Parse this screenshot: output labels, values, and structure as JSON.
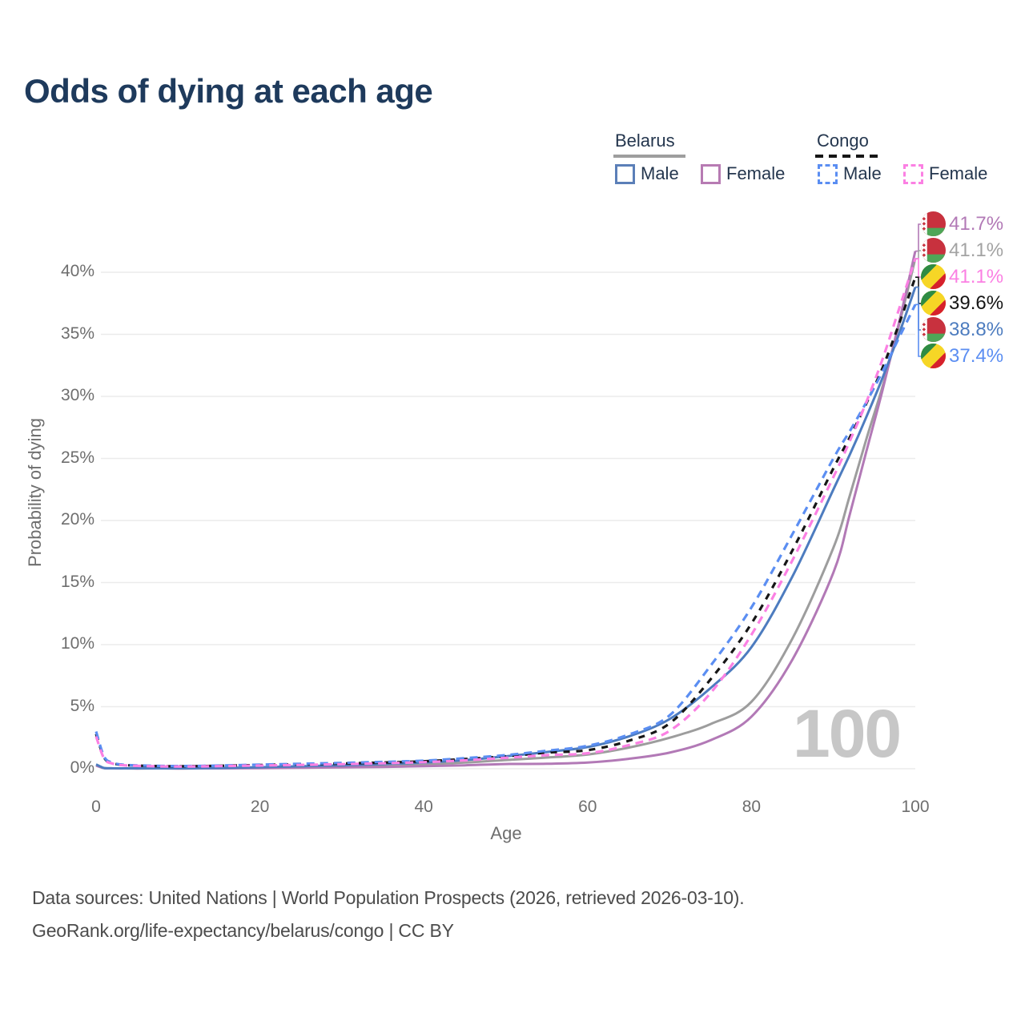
{
  "title": "Odds of dying at each age",
  "legend": {
    "groups": [
      {
        "label": "Belarus",
        "line_style": "solid",
        "underline_color": "#9e9e9e",
        "items": [
          {
            "label": "Male",
            "color": "#4d7cbf"
          },
          {
            "label": "Female",
            "color": "#b279b6"
          }
        ]
      },
      {
        "label": "Congo",
        "line_style": "dashed",
        "underline_color": "#161616",
        "items": [
          {
            "label": "Male",
            "color": "#5b8ef2"
          },
          {
            "label": "Female",
            "color": "#fb80e3"
          }
        ]
      }
    ]
  },
  "chart_data": {
    "type": "line",
    "title": "Odds of dying at each age",
    "xlabel": "Age",
    "ylabel": "Probability of dying",
    "xlim": [
      0,
      100
    ],
    "ylim": [
      0,
      45
    ],
    "xticks": [
      0,
      20,
      40,
      60,
      80,
      100
    ],
    "yticks": [
      0,
      5,
      10,
      15,
      20,
      25,
      30,
      35,
      40
    ],
    "ytick_suffix": "%",
    "grid": "horizontal",
    "watermark": "100",
    "ages": [
      0,
      1,
      2,
      3,
      5,
      10,
      15,
      20,
      25,
      30,
      35,
      40,
      45,
      50,
      55,
      60,
      65,
      70,
      75,
      80,
      85,
      90,
      92,
      94,
      96,
      98,
      100
    ],
    "series": [
      {
        "id": "belarus-both",
        "name": "Belarus Both sexes",
        "country": "Belarus",
        "sex": "Both",
        "color": "#9d9d9d",
        "dash": null,
        "width": 3,
        "values": [
          0.3,
          0.05,
          0.035,
          0.03,
          0.025,
          0.025,
          0.045,
          0.09,
          0.14,
          0.2,
          0.27,
          0.36,
          0.5,
          0.7,
          0.9,
          1.15,
          1.7,
          2.5,
          3.6,
          5.4,
          10.5,
          17.8,
          22.0,
          26.5,
          30.8,
          35.7,
          41.1
        ]
      },
      {
        "id": "belarus-female",
        "name": "Belarus Female",
        "country": "Belarus",
        "sex": "Female",
        "color": "#b279b6",
        "dash": null,
        "width": 3,
        "values": [
          0.25,
          0.045,
          0.03,
          0.025,
          0.02,
          0.02,
          0.03,
          0.05,
          0.08,
          0.11,
          0.15,
          0.21,
          0.28,
          0.38,
          0.4,
          0.5,
          0.8,
          1.3,
          2.3,
          4.2,
          8.8,
          15.8,
          20.5,
          25.5,
          30.5,
          35.9,
          41.7
        ]
      },
      {
        "id": "belarus-male",
        "name": "Belarus Male",
        "country": "Belarus",
        "sex": "Male",
        "color": "#4d7cbf",
        "dash": null,
        "width": 3,
        "values": [
          0.35,
          0.06,
          0.04,
          0.035,
          0.03,
          0.03,
          0.06,
          0.12,
          0.2,
          0.28,
          0.38,
          0.5,
          0.7,
          1.0,
          1.35,
          1.75,
          2.6,
          4.0,
          6.5,
          9.8,
          15.5,
          22.5,
          25.3,
          28.3,
          31.5,
          35.0,
          38.8
        ]
      },
      {
        "id": "congo-both",
        "name": "Congo Both sexes",
        "country": "Congo",
        "sex": "Both",
        "color": "#161616",
        "dash": "8 8",
        "width": 3.2,
        "values": [
          2.8,
          0.88,
          0.46,
          0.33,
          0.25,
          0.2,
          0.24,
          0.3,
          0.36,
          0.42,
          0.5,
          0.6,
          0.78,
          1.0,
          1.3,
          1.5,
          2.25,
          3.65,
          7.2,
          11.7,
          17.6,
          24.2,
          26.7,
          29.4,
          32.3,
          35.8,
          39.6
        ]
      },
      {
        "id": "congo-male",
        "name": "Congo Male",
        "country": "Congo",
        "sex": "Male",
        "color": "#5b8ef2",
        "dash": "10 7",
        "width": 3.2,
        "values": [
          3.0,
          0.95,
          0.5,
          0.35,
          0.27,
          0.22,
          0.26,
          0.33,
          0.4,
          0.47,
          0.55,
          0.65,
          0.85,
          1.1,
          1.45,
          1.85,
          2.75,
          4.3,
          8.3,
          13.0,
          18.9,
          25.0,
          27.2,
          29.5,
          32.0,
          34.7,
          37.4
        ]
      },
      {
        "id": "congo-female",
        "name": "Congo Female",
        "country": "Congo",
        "sex": "Female",
        "color": "#fb80e3",
        "dash": "10 7",
        "width": 3.2,
        "values": [
          2.6,
          0.8,
          0.42,
          0.3,
          0.23,
          0.18,
          0.21,
          0.26,
          0.31,
          0.37,
          0.44,
          0.53,
          0.68,
          0.88,
          1.1,
          1.25,
          1.9,
          3.05,
          6.1,
          10.8,
          16.8,
          23.5,
          26.4,
          29.5,
          33.0,
          37.0,
          41.1
        ]
      }
    ],
    "end_labels": [
      {
        "value": "41.7%",
        "series": "Belarus Female",
        "flag": "belarus",
        "color": "#b279b6",
        "y_value": 41.7
      },
      {
        "value": "41.1%",
        "series": "Belarus Both sexes",
        "flag": "belarus",
        "color": "#a3a3a3",
        "y_value": 41.1
      },
      {
        "value": "41.1%",
        "series": "Congo Female",
        "flag": "congo",
        "color": "#fb80e3",
        "y_value": 41.1
      },
      {
        "value": "39.6%",
        "series": "Congo Both sexes",
        "flag": "congo",
        "color": "#161616",
        "y_value": 39.6
      },
      {
        "value": "38.8%",
        "series": "Belarus Male",
        "flag": "belarus",
        "color": "#4d7cbf",
        "y_value": 38.8
      },
      {
        "value": "37.4%",
        "series": "Congo Male",
        "flag": "congo",
        "color": "#5b8ef2",
        "y_value": 37.4
      }
    ]
  },
  "footer": {
    "line1": "Data sources: United Nations | World Population Prospects (2026, retrieved 2026-03-10).",
    "line2": "GeoRank.org/life-expectancy/belarus/congo | CC BY"
  }
}
